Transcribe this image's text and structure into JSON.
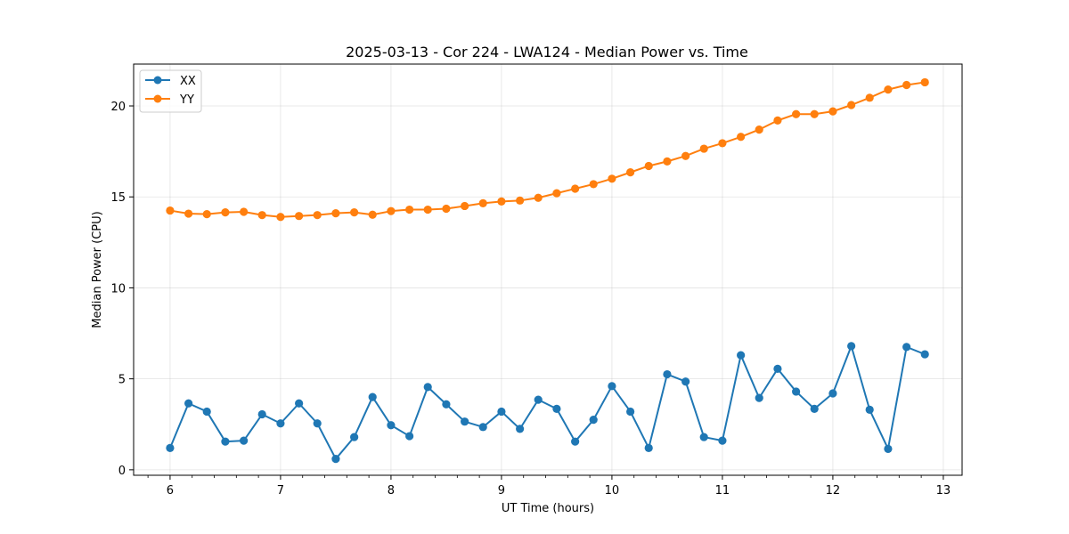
{
  "chart_data": {
    "type": "line",
    "title": "2025-03-13 - Cor 224 - LWA124 - Median Power vs. Time",
    "xlabel": "UT Time (hours)",
    "ylabel": "Median Power (CPU)",
    "xlim": [
      5.67,
      13.17
    ],
    "ylim": [
      -0.3,
      22.3
    ],
    "xticks": [
      6,
      7,
      8,
      9,
      10,
      11,
      12,
      13
    ],
    "yticks": [
      0,
      5,
      10,
      15,
      20
    ],
    "grid": true,
    "legend_position": "top-left",
    "x": [
      6.0,
      6.167,
      6.333,
      6.5,
      6.667,
      6.833,
      7.0,
      7.167,
      7.333,
      7.5,
      7.667,
      7.833,
      8.0,
      8.167,
      8.333,
      8.5,
      8.667,
      8.833,
      9.0,
      9.167,
      9.333,
      9.5,
      9.667,
      9.833,
      10.0,
      10.167,
      10.333,
      10.5,
      10.667,
      10.833,
      11.0,
      11.167,
      11.333,
      11.5,
      11.667,
      11.833,
      12.0,
      12.167,
      12.333,
      12.5,
      12.667,
      12.833
    ],
    "series": [
      {
        "name": "XX",
        "color": "#1f77b4",
        "values": [
          1.2,
          3.65,
          3.2,
          1.55,
          1.6,
          3.05,
          2.55,
          3.65,
          2.55,
          0.6,
          1.8,
          4.0,
          2.45,
          1.85,
          4.55,
          3.6,
          2.65,
          2.35,
          3.2,
          2.25,
          3.85,
          3.35,
          1.55,
          2.75,
          4.6,
          3.2,
          1.2,
          5.25,
          4.85,
          1.8,
          1.6,
          6.3,
          3.95,
          5.55,
          4.3,
          3.35,
          4.2,
          6.8,
          3.3,
          1.15,
          6.75,
          6.35
        ]
      },
      {
        "name": "YY",
        "color": "#ff7f0e",
        "values": [
          14.25,
          14.08,
          14.05,
          14.15,
          14.18,
          14.0,
          13.9,
          13.95,
          14.0,
          14.1,
          14.15,
          14.02,
          14.22,
          14.3,
          14.3,
          14.35,
          14.5,
          14.65,
          14.75,
          14.8,
          14.95,
          15.2,
          15.45,
          15.7,
          16.0,
          16.35,
          16.7,
          16.95,
          17.25,
          17.65,
          17.95,
          18.3,
          18.7,
          19.2,
          19.55,
          19.55,
          19.7,
          20.05,
          20.45,
          20.9,
          21.15,
          21.3
        ]
      }
    ]
  }
}
